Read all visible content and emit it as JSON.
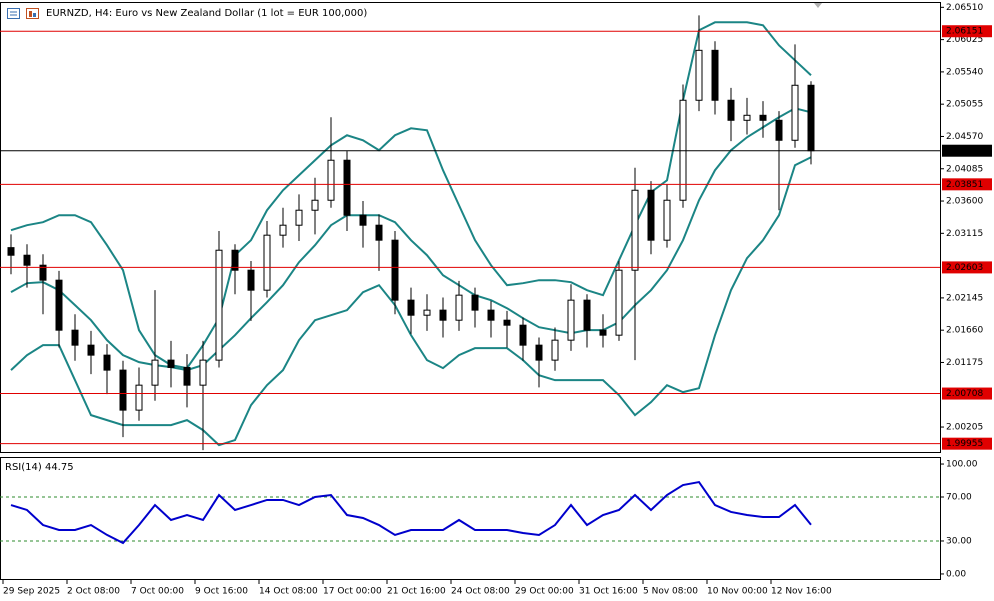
{
  "chart_data": [
    {
      "type": "candlestick",
      "title": "EURNZD, H4:  Euro vs New Zealand Dollar (1 lot = EUR 100,000)",
      "categories": [
        "29 Sep 2025",
        null,
        null,
        null,
        "2 Oct 08:00",
        null,
        null,
        null,
        "7 Oct 00:00",
        null,
        null,
        null,
        "9 Oct 16:00",
        null,
        null,
        null,
        "14 Oct 08:00",
        null,
        null,
        null,
        "17 Oct 00:00",
        null,
        null,
        null,
        "21 Oct 16:00",
        null,
        null,
        null,
        "24 Oct 08:00",
        null,
        null,
        null,
        "29 Oct 00:00",
        null,
        null,
        null,
        "31 Oct 16:00",
        null,
        null,
        null,
        "5 Nov 08:00",
        null,
        null,
        null,
        "10 Nov 00:00",
        null,
        null,
        null,
        "12 Nov 16:00",
        null,
        null
      ],
      "open": [
        2.029,
        2.02786,
        2.02636,
        2.02411,
        2.0166,
        2.01435,
        2.01285,
        2.0106,
        2.00459,
        2.00834,
        2.0121,
        2.011,
        2.00834,
        2.0121,
        2.02861,
        2.02561,
        2.02261,
        2.03087,
        2.03237,
        2.03462,
        2.03612,
        2.04213,
        2.03387,
        2.03237,
        2.03012,
        2.02111,
        2.01885,
        2.01961,
        2.0181,
        2.02186,
        2.01961,
        2.0181,
        2.01735,
        2.01435,
        2.0121,
        2.0151,
        2.02111,
        2.0166,
        2.01585,
        2.02561,
        2.03762,
        2.03012,
        2.03612,
        2.05114,
        2.05864,
        2.05114,
        2.04813,
        2.04888,
        2.04813,
        2.04513,
        2.05339
      ],
      "high": [
        2.031,
        2.0295,
        2.028,
        2.0255,
        2.019,
        2.0165,
        2.0145,
        2.012,
        2.011,
        2.02261,
        2.015,
        2.013,
        2.015,
        2.0315,
        2.0295,
        2.027,
        2.033,
        2.035,
        2.037,
        2.0395,
        2.04858,
        2.0435,
        2.036,
        2.034,
        2.0315,
        2.023,
        2.022,
        2.0215,
        2.024,
        2.023,
        2.021,
        2.0195,
        2.0185,
        2.0155,
        2.017,
        2.0235,
        2.022,
        2.019,
        2.027,
        2.041,
        2.039,
        2.0385,
        2.0535,
        2.0639,
        2.06,
        2.053,
        2.0515,
        2.051,
        2.0495,
        2.05954,
        2.054
      ],
      "low": [
        2.025,
        2.023,
        2.019,
        2.014,
        2.012,
        2.01,
        2.007,
        2.00054,
        2.003,
        2.006,
        2.008,
        2.005,
        1.99858,
        2.011,
        2.022,
        2.018,
        2.0215,
        2.029,
        2.03,
        2.031,
        2.035,
        2.0315,
        2.029,
        2.0255,
        2.019,
        2.016,
        2.0165,
        2.0155,
        2.0165,
        2.017,
        2.0155,
        2.014,
        2.012,
        2.008,
        2.0105,
        2.0135,
        2.014,
        2.014,
        2.015,
        2.0121,
        2.028,
        2.029,
        2.035,
        2.0495,
        2.049,
        2.045,
        2.046,
        2.0455,
        2.03462,
        2.044,
        2.0415
      ],
      "close": [
        2.02786,
        2.02636,
        2.02411,
        2.0166,
        2.01435,
        2.01285,
        2.0106,
        2.00459,
        2.00834,
        2.0121,
        2.011,
        2.00834,
        2.0121,
        2.02861,
        2.02561,
        2.02261,
        2.03087,
        2.03237,
        2.03462,
        2.03612,
        2.04213,
        2.03387,
        2.03237,
        2.03012,
        2.02111,
        2.01885,
        2.01961,
        2.0181,
        2.02186,
        2.01961,
        2.0181,
        2.01735,
        2.01435,
        2.0121,
        2.0151,
        2.02111,
        2.0166,
        2.01585,
        2.02561,
        2.03762,
        2.03012,
        2.03612,
        2.05114,
        2.05864,
        2.05114,
        2.04813,
        2.04888,
        2.04813,
        2.04513,
        2.05339,
        2.04356
      ],
      "bands": {
        "color": "#1b8585",
        "upper": [
          2.03162,
          2.03237,
          2.03282,
          2.03387,
          2.03387,
          2.03282,
          2.02936,
          2.02561,
          2.0166,
          2.01285,
          2.01135,
          2.0109,
          2.01435,
          2.0184,
          2.02786,
          2.03012,
          2.03462,
          2.03762,
          2.03987,
          2.04213,
          2.04438,
          2.04588,
          2.04513,
          2.04363,
          2.04588,
          2.04693,
          2.04663,
          2.04063,
          2.03537,
          2.03012,
          2.02636,
          2.02336,
          2.02366,
          2.02411,
          2.02411,
          2.02381,
          2.02261,
          2.02186,
          2.02711,
          2.03237,
          2.03732,
          2.03912,
          2.05114,
          2.06165,
          2.06285,
          2.06285,
          2.06285,
          2.0624,
          2.05939,
          2.05714,
          2.05489
        ],
        "middle": [
          2.02231,
          2.02366,
          2.02381,
          2.02261,
          2.02036,
          2.0181,
          2.0151,
          2.01285,
          2.0118,
          2.01135,
          2.01105,
          2.0106,
          2.01135,
          2.0136,
          2.01585,
          2.0184,
          2.02081,
          2.02336,
          2.02681,
          2.02936,
          2.03237,
          2.03387,
          2.03387,
          2.03387,
          2.03282,
          2.03012,
          2.02786,
          2.02486,
          2.02336,
          2.02186,
          2.02111,
          2.0199,
          2.0184,
          2.01705,
          2.0166,
          2.01615,
          2.0166,
          2.0166,
          2.0178,
          2.02036,
          2.02261,
          2.02561,
          2.03012,
          2.03612,
          2.04063,
          2.04363,
          2.04558,
          2.04708,
          2.04858,
          2.04993,
          2.04933
        ],
        "lower": [
          2.0106,
          2.01285,
          2.01435,
          2.01435,
          2.00909,
          2.00384,
          2.00309,
          2.00234,
          2.00234,
          2.00234,
          2.00234,
          2.00309,
          2.00159,
          1.99933,
          2.00009,
          2.00534,
          2.00834,
          2.0106,
          2.0151,
          2.0181,
          2.01885,
          2.01961,
          2.02231,
          2.02336,
          2.02036,
          2.01585,
          2.0121,
          2.0109,
          2.01285,
          2.0139,
          2.0139,
          2.0139,
          2.0121,
          2.00984,
          2.00909,
          2.00909,
          2.00909,
          2.00909,
          2.00684,
          2.00384,
          2.00579,
          2.00834,
          2.00729,
          2.00789,
          2.01585,
          2.02261,
          2.02741,
          2.03012,
          2.03387,
          2.04138,
          2.04258
        ]
      },
      "levels": [
        2.06151,
        2.03851,
        2.02603,
        2.00708,
        1.99955
      ],
      "level_color": "#e00000",
      "price": 2.04356,
      "ylim": [
        1.9983,
        2.0659
      ],
      "yticks": [
        {
          "value": 2.0651,
          "label": "2.06510"
        },
        2.06025,
        {
          "value": 2.0554,
          "label": "2.05540"
        },
        2.05055,
        {
          "value": 2.0457,
          "label": "2.04570"
        },
        2.04085,
        {
          "value": 2.036,
          "label": "2.03600"
        },
        2.03115,
        2.02145,
        {
          "value": 2.0166,
          "label": "2.01660"
        },
        2.01175,
        2.00205
      ]
    },
    {
      "type": "line",
      "title": "RSI(14) 44.75",
      "color": "#0000cc",
      "values": [
        62.7,
        58.2,
        44.5,
        40,
        40,
        44.5,
        35.5,
        28.2,
        44.5,
        62.7,
        49.1,
        53.6,
        49.1,
        71.8,
        58.2,
        62.7,
        67.3,
        67.3,
        62.7,
        70,
        71.8,
        53.6,
        50.9,
        44.5,
        35.5,
        40,
        40,
        40,
        49.1,
        40,
        40,
        40,
        37.3,
        35.5,
        44.5,
        62.7,
        44.5,
        53.6,
        58.2,
        71.8,
        58.2,
        71.8,
        80.9,
        83.6,
        62.7,
        56.4,
        53.6,
        51.8,
        51.8,
        62.7,
        44.75
      ],
      "levels": [
        70,
        30
      ],
      "level_color": "#2e8b2e",
      "ylim": [
        -5.5,
        106.4
      ],
      "yticks": [
        {
          "value": 100,
          "label": "100.00"
        },
        {
          "value": 70,
          "label": "70.00"
        },
        {
          "value": 30,
          "label": "30.00"
        },
        {
          "value": 0,
          "label": "0.00"
        }
      ]
    }
  ]
}
